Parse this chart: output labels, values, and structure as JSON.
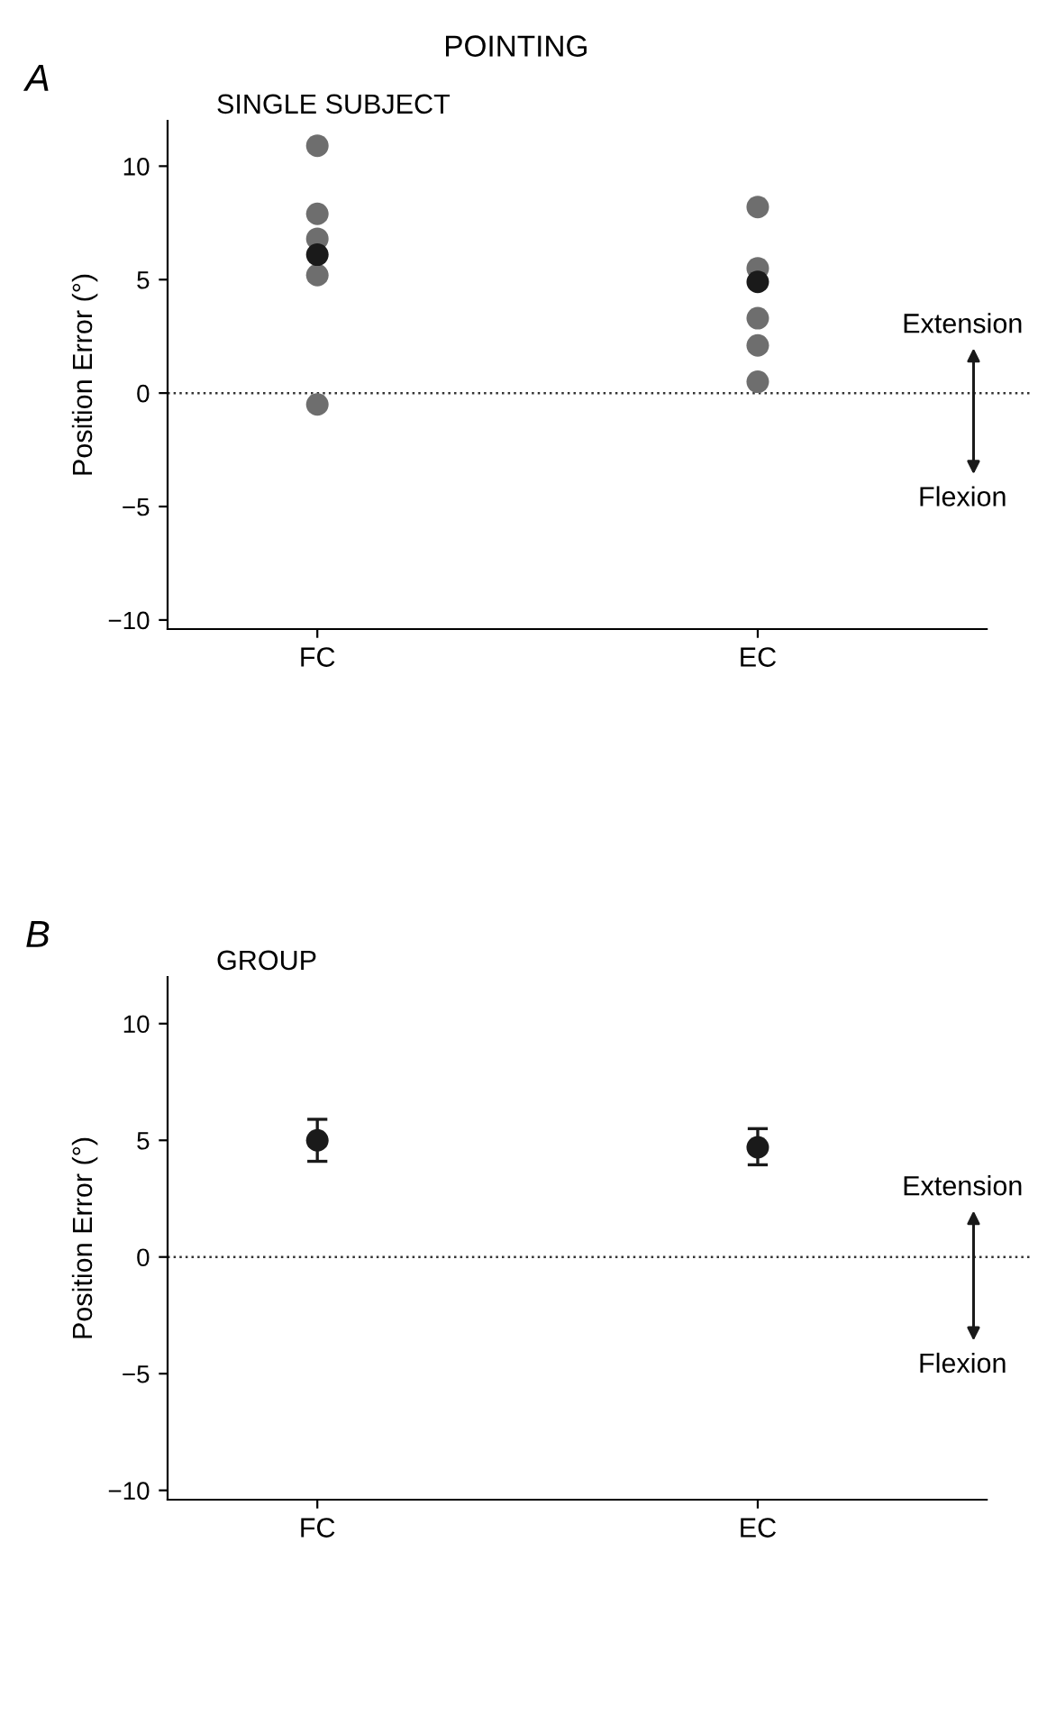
{
  "chart_data": [
    {
      "type": "scatter",
      "title": "POINTING",
      "subtitle": "SINGLE SUBJECT",
      "ylabel": "Position Error (°)",
      "categories": [
        "FC",
        "EC"
      ],
      "series": [
        {
          "x": [
            "FC",
            "FC",
            "FC",
            "FC",
            "FC",
            "EC",
            "EC",
            "EC",
            "EC",
            "EC"
          ],
          "values": [
            10.9,
            7.9,
            6.8,
            5.2,
            -0.5,
            8.2,
            5.5,
            3.3,
            2.1,
            0.5
          ],
          "color": "#6e6e6e"
        },
        {
          "x": [
            "FC",
            "EC"
          ],
          "values": [
            6.1,
            4.9
          ],
          "color": "#1a1a1a"
        }
      ],
      "ylim": [
        -10.4,
        12
      ],
      "yticks": [
        -10,
        -5,
        0,
        5,
        10
      ],
      "ref_lines": [
        {
          "axis": "y",
          "value": 0,
          "color": "#333333",
          "line_style": "dotted"
        }
      ],
      "annotations": [
        "A",
        "Extension",
        "Flexion"
      ],
      "marker": "circle",
      "grid": false,
      "legend": false
    },
    {
      "type": "scatter",
      "subtitle": "GROUP",
      "ylabel": "Position Error (°)",
      "categories": [
        "FC",
        "EC"
      ],
      "series": [
        {
          "x": [
            "FC",
            "EC"
          ],
          "values": [
            5.0,
            4.7
          ],
          "errors": [
            [
              4.1,
              5.9
            ],
            [
              3.95,
              5.5
            ]
          ],
          "color": "#1a1a1a"
        }
      ],
      "ylim": [
        -10.4,
        12
      ],
      "yticks": [
        -10,
        -5,
        0,
        5,
        10
      ],
      "ref_lines": [
        {
          "axis": "y",
          "value": 0,
          "color": "#333333",
          "line_style": "dotted"
        }
      ],
      "annotations": [
        "B",
        "Extension",
        "Flexion"
      ],
      "marker": "circle",
      "grid": false,
      "legend": false
    }
  ]
}
